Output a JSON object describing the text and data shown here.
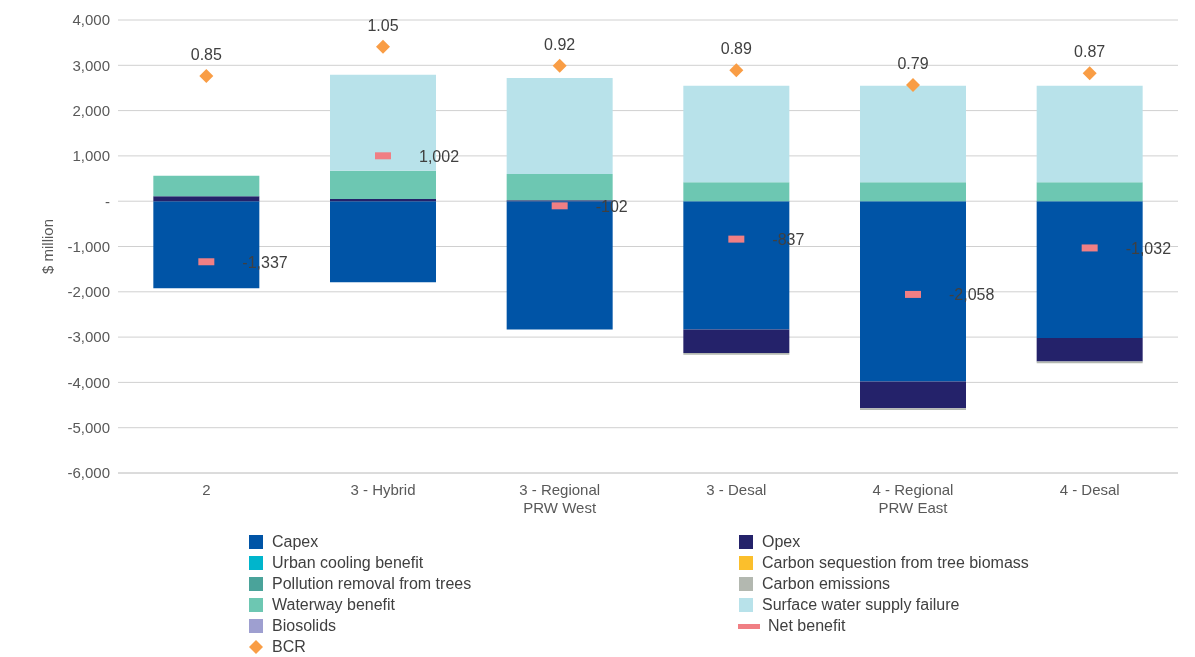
{
  "chart_data": {
    "type": "bar",
    "stacked": true,
    "ylabel": "$ million",
    "categories": [
      "2",
      "3 - Hybrid",
      "3 - Regional PRW West",
      "3 - Desal",
      "4 - Regional PRW East",
      "4 - Desal"
    ],
    "ylim": [
      -6000,
      4000
    ],
    "yticks": [
      {
        "value": -6000,
        "label": "-6,000"
      },
      {
        "value": -5000,
        "label": "-5,000"
      },
      {
        "value": -4000,
        "label": "-4,000"
      },
      {
        "value": -3000,
        "label": "-3,000"
      },
      {
        "value": -2000,
        "label": "-2,000"
      },
      {
        "value": -1000,
        "label": "-1,000"
      },
      {
        "value": 0,
        "label": "-"
      },
      {
        "value": 1000,
        "label": "1,000"
      },
      {
        "value": 2000,
        "label": "2,000"
      },
      {
        "value": 3000,
        "label": "3,000"
      },
      {
        "value": 4000,
        "label": "4,000"
      }
    ],
    "y2lim": [
      -1.846,
      1.231
    ],
    "grid": "y",
    "legend": "bottom",
    "series": [
      {
        "name": "Capex",
        "color": "#0054a6",
        "values": [
          -1920,
          -1790,
          -2830,
          -2830,
          -3980,
          -3020
        ]
      },
      {
        "name": "Opex",
        "color": "#24226a",
        "values": [
          110,
          50,
          20,
          -520,
          -590,
          -520
        ]
      },
      {
        "name": "Urban cooling benefit",
        "color": "#00b5cc",
        "values": [
          0,
          0,
          0,
          0,
          0,
          0
        ]
      },
      {
        "name": "Carbon sequestion from tree biomass",
        "color": "#fbbf2c",
        "values": [
          0,
          0,
          0,
          0,
          0,
          0
        ]
      },
      {
        "name": "Pollution removal from trees",
        "color": "#4aa39a",
        "values": [
          0,
          0,
          0,
          0,
          0,
          0
        ]
      },
      {
        "name": "Carbon emissions",
        "color": "#b3b8b0",
        "values": [
          0,
          0,
          0,
          -40,
          -40,
          -40
        ]
      },
      {
        "name": "Waterway benefit",
        "color": "#6dc7b2",
        "values": [
          450,
          620,
          580,
          420,
          420,
          420
        ]
      },
      {
        "name": "Surface water supply failure",
        "color": "#b8e2ea",
        "values": [
          0,
          2120,
          2120,
          2130,
          2130,
          2130
        ]
      },
      {
        "name": "Biosolids",
        "color": "#9e9fd0",
        "values": [
          0,
          0,
          0,
          0,
          0,
          0
        ]
      },
      {
        "name": "Net benefit",
        "type": "scatter",
        "color": "#f07f84",
        "values": [
          -1337,
          1002,
          -102,
          -837,
          -2058,
          -1032
        ],
        "value_labels": [
          "-1,337",
          "1,002",
          "-102",
          "-837",
          "-2,058",
          "-1,032"
        ]
      },
      {
        "name": "BCR",
        "type": "scatter",
        "marker": "diamond",
        "axis": "y2",
        "color": "#f99d45",
        "values": [
          0.85,
          1.05,
          0.92,
          0.89,
          0.79,
          0.87
        ],
        "value_labels": [
          "0.85",
          "1.05",
          "0.92",
          "0.89",
          "0.79",
          "0.87"
        ]
      }
    ]
  }
}
